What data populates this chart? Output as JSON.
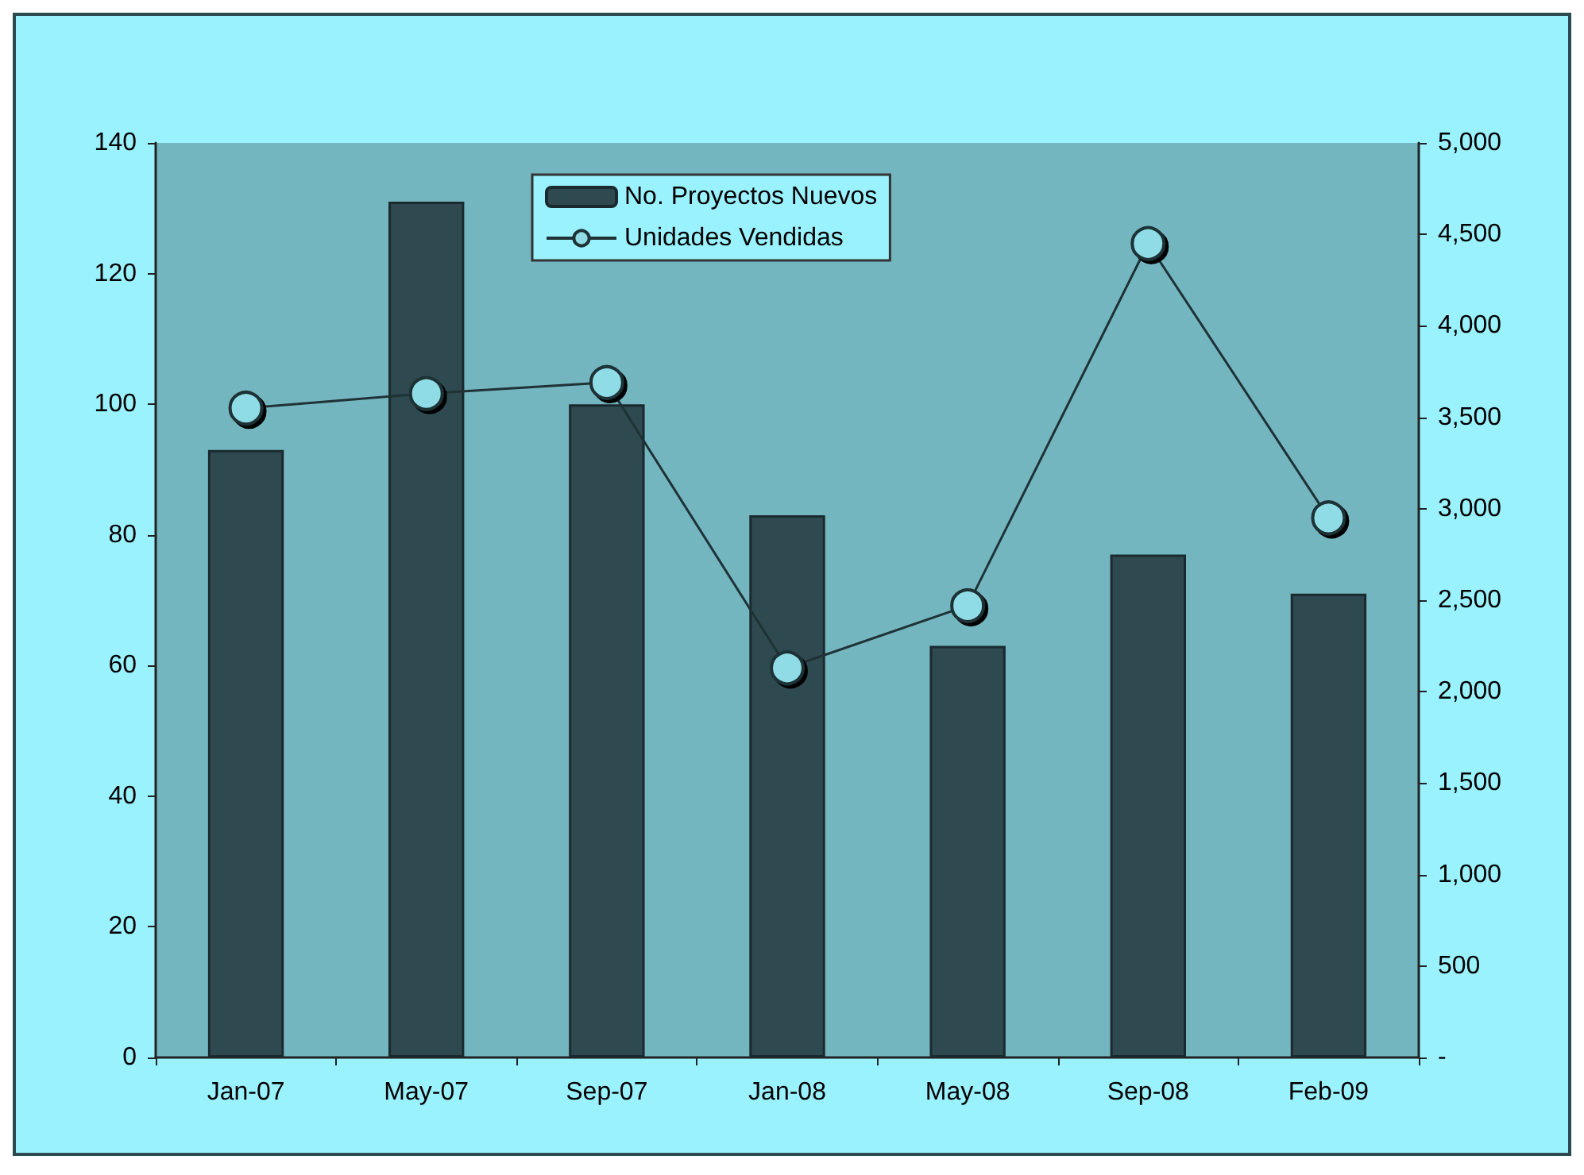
{
  "chart_data": {
    "type": "bar",
    "categories": [
      "Jan-07",
      "May-07",
      "Sep-07",
      "Jan-08",
      "May-08",
      "Sep-08",
      "Feb-09"
    ],
    "series": [
      {
        "name": "No. Proyectos Nuevos",
        "color": "#2e4a50",
        "values": [
          93,
          131,
          100,
          83,
          63,
          77,
          71
        ]
      },
      {
        "name": "Unidades Vendidas",
        "type": "line",
        "axis": "y2",
        "color": "#1f3236",
        "marker": "circle",
        "values": [
          3550,
          3630,
          3690,
          2130,
          2470,
          4450,
          2950
        ]
      }
    ],
    "ylim": [
      0,
      140
    ],
    "yticks": [
      0,
      20,
      40,
      60,
      80,
      100,
      120,
      140
    ],
    "y2lim": [
      0,
      5000
    ],
    "y2ticks": [
      {
        "value": 0,
        "label": "-"
      },
      500,
      {
        "value": 1000,
        "label": "1,000"
      },
      {
        "value": 1500,
        "label": "1,500"
      },
      {
        "value": 2000,
        "label": "2,000"
      },
      {
        "value": 2500,
        "label": "2,500"
      },
      {
        "value": 3000,
        "label": "3,000"
      },
      {
        "value": 3500,
        "label": "3,500"
      },
      {
        "value": 4000,
        "label": "4,000"
      },
      {
        "value": 4500,
        "label": "4,500"
      },
      {
        "value": 5000,
        "label": "5,000"
      }
    ],
    "grid": false,
    "legend": "top"
  }
}
